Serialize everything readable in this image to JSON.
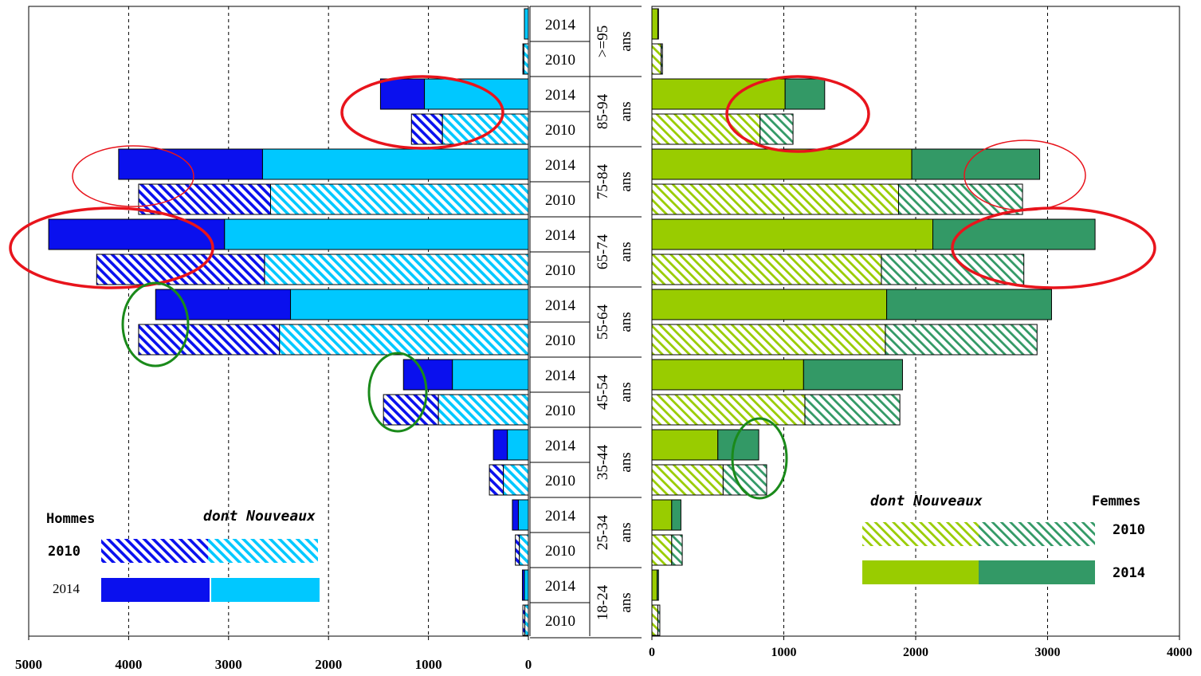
{
  "chart_data": {
    "type": "bar",
    "subtype": "population-pyramid",
    "age_groups": [
      ">=95",
      "85-94",
      "75-84",
      "65-74",
      "55-64",
      "45-54",
      "35-44",
      "25-34",
      "18-24"
    ],
    "age_unit": "ans",
    "years": [
      "2014",
      "2010"
    ],
    "left_axis": {
      "ticks": [
        5000,
        4000,
        3000,
        2000,
        1000,
        0
      ],
      "range": [
        0,
        5000
      ],
      "direction": "reversed"
    },
    "right_axis": {
      "ticks": [
        0,
        1000,
        2000,
        3000,
        4000
      ],
      "range": [
        0,
        4000
      ]
    },
    "grid": "vertical dashed",
    "men": {
      "label": "Hommes",
      "colors": {
        "total": "#0a10ee",
        "new": "#00c8ff"
      },
      "rows": [
        {
          "age": ">=95",
          "year": "2014",
          "total": 40,
          "new": 40
        },
        {
          "age": ">=95",
          "year": "2010",
          "total": 55,
          "new": 45
        },
        {
          "age": "85-94",
          "year": "2014",
          "total": 1480,
          "new": 1040
        },
        {
          "age": "85-94",
          "year": "2010",
          "total": 1170,
          "new": 860
        },
        {
          "age": "75-84",
          "year": "2014",
          "total": 4100,
          "new": 2660
        },
        {
          "age": "75-84",
          "year": "2010",
          "total": 3900,
          "new": 2580
        },
        {
          "age": "65-74",
          "year": "2014",
          "total": 4800,
          "new": 3040
        },
        {
          "age": "65-74",
          "year": "2010",
          "total": 4320,
          "new": 2640
        },
        {
          "age": "55-64",
          "year": "2014",
          "total": 3730,
          "new": 2380
        },
        {
          "age": "55-64",
          "year": "2010",
          "total": 3900,
          "new": 2490
        },
        {
          "age": "45-54",
          "year": "2014",
          "total": 1250,
          "new": 760
        },
        {
          "age": "45-54",
          "year": "2010",
          "total": 1450,
          "new": 900
        },
        {
          "age": "35-44",
          "year": "2014",
          "total": 350,
          "new": 210
        },
        {
          "age": "35-44",
          "year": "2010",
          "total": 390,
          "new": 250
        },
        {
          "age": "25-34",
          "year": "2014",
          "total": 160,
          "new": 100
        },
        {
          "age": "25-34",
          "year": "2010",
          "total": 130,
          "new": 90
        },
        {
          "age": "18-24",
          "year": "2014",
          "total": 60,
          "new": 40
        },
        {
          "age": "18-24",
          "year": "2010",
          "total": 55,
          "new": 35
        }
      ]
    },
    "women": {
      "label": "Femmes",
      "colors": {
        "total": "#339966",
        "new": "#99cc00"
      },
      "rows": [
        {
          "age": ">=95",
          "year": "2014",
          "total": 50,
          "new": 45
        },
        {
          "age": ">=95",
          "year": "2010",
          "total": 80,
          "new": 70
        },
        {
          "age": "85-94",
          "year": "2014",
          "total": 1310,
          "new": 1010
        },
        {
          "age": "85-94",
          "year": "2010",
          "total": 1070,
          "new": 820
        },
        {
          "age": "75-84",
          "year": "2014",
          "total": 2940,
          "new": 1970
        },
        {
          "age": "75-84",
          "year": "2010",
          "total": 2810,
          "new": 1870
        },
        {
          "age": "65-74",
          "year": "2014",
          "total": 3360,
          "new": 2130
        },
        {
          "age": "65-74",
          "year": "2010",
          "total": 2820,
          "new": 1740
        },
        {
          "age": "55-64",
          "year": "2014",
          "total": 3030,
          "new": 1780
        },
        {
          "age": "55-64",
          "year": "2010",
          "total": 2920,
          "new": 1770
        },
        {
          "age": "45-54",
          "year": "2014",
          "total": 1900,
          "new": 1150
        },
        {
          "age": "45-54",
          "year": "2010",
          "total": 1880,
          "new": 1160
        },
        {
          "age": "35-44",
          "year": "2014",
          "total": 810,
          "new": 500
        },
        {
          "age": "35-44",
          "year": "2010",
          "total": 870,
          "new": 540
        },
        {
          "age": "25-34",
          "year": "2014",
          "total": 220,
          "new": 150
        },
        {
          "age": "25-34",
          "year": "2010",
          "total": 230,
          "new": 150
        },
        {
          "age": "18-24",
          "year": "2014",
          "total": 50,
          "new": 40
        },
        {
          "age": "18-24",
          "year": "2010",
          "total": 60,
          "new": 45
        }
      ]
    },
    "legend": {
      "hommes_title": "Hommes",
      "femmes_title": "Femmes",
      "dont_nouveaux": "dont Nouveaux",
      "year_2010": "2010",
      "year_2014": "2014"
    },
    "highlight_colors": {
      "red": "#e8141c",
      "green": "#1a8a1a"
    }
  }
}
